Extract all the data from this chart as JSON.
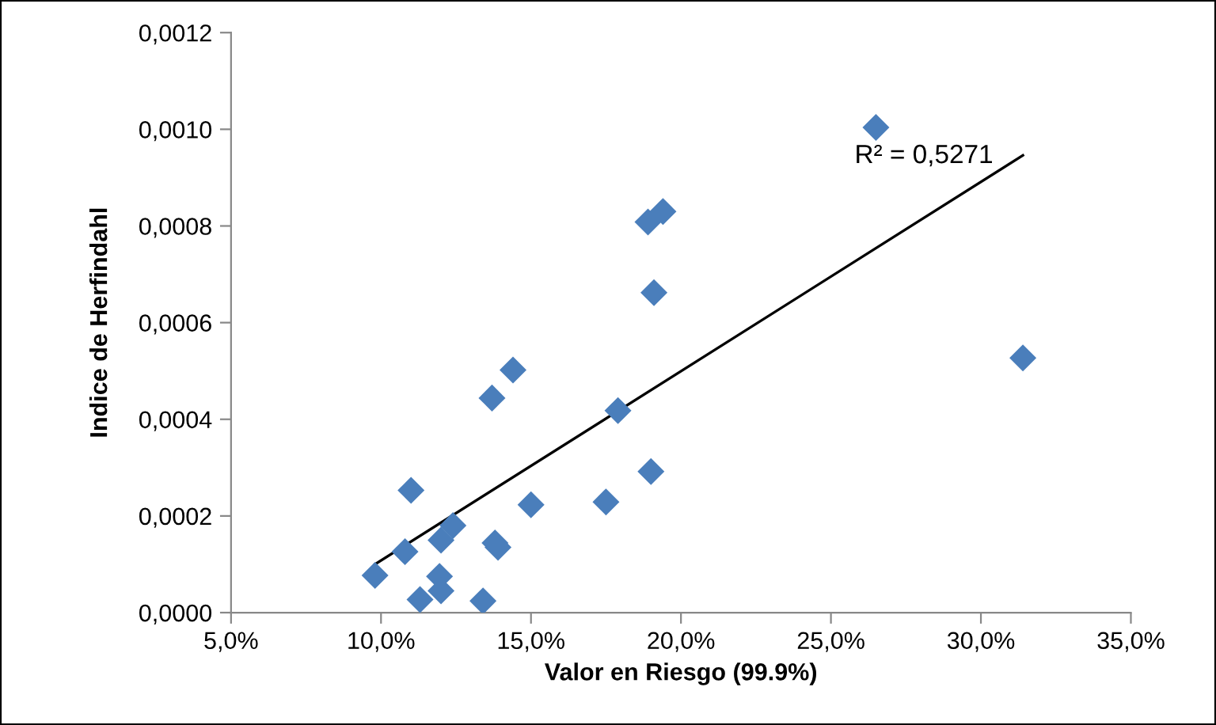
{
  "chart_data": {
    "type": "scatter",
    "xlabel": "Valor en Riesgo (99.9%)",
    "ylabel": "Indice de Herfindahl",
    "annotations": [
      "R² = 0,5271"
    ],
    "xlim": [
      5,
      35
    ],
    "ylim": [
      0,
      0.0012
    ],
    "xticks": [
      {
        "value": 5,
        "label": "5,0%"
      },
      {
        "value": 10,
        "label": "10,0%"
      },
      {
        "value": 15,
        "label": "15,0%"
      },
      {
        "value": 20,
        "label": "20,0%"
      },
      {
        "value": 25,
        "label": "25,0%"
      },
      {
        "value": 30,
        "label": "30,0%"
      },
      {
        "value": 35,
        "label": "35,0%"
      }
    ],
    "yticks": [
      {
        "value": 0,
        "label": "0,0000"
      },
      {
        "value": 0.0002,
        "label": "0,0002"
      },
      {
        "value": 0.0004,
        "label": "0,0004"
      },
      {
        "value": 0.0006,
        "label": "0,0006"
      },
      {
        "value": 0.0008,
        "label": "0,0008"
      },
      {
        "value": 0.001,
        "label": "0,0010"
      },
      {
        "value": 0.0012,
        "label": "0,0012"
      }
    ],
    "grid": false,
    "legend": false,
    "series": [
      {
        "color": "#4a7ebb",
        "marker": "diamond",
        "x": [
          9.8,
          11.3,
          10.8,
          11.0,
          11.95,
          12.0,
          12.0,
          12.4,
          13.4,
          13.8,
          13.9,
          13.7,
          15.0,
          17.5,
          19.0,
          17.9,
          14.4,
          19.1,
          18.9,
          19.4,
          26.5,
          31.4
        ],
        "values": [
          7.7e-05,
          2.7e-05,
          0.000126,
          0.000253,
          7.5e-05,
          4.5e-05,
          0.00015,
          0.00018,
          2.4e-05,
          0.000144,
          0.000135,
          0.000444,
          0.000223,
          0.000229,
          0.000292,
          0.000418,
          0.000502,
          0.000662,
          0.000808,
          0.00083,
          0.001004,
          0.000527
        ]
      },
      {
        "type": "line",
        "color": "#000000",
        "marker": "none",
        "line_style": "solid",
        "x": [
          9.8,
          31.4
        ],
        "values": [
          0.0001,
          0.000946
        ]
      }
    ]
  }
}
